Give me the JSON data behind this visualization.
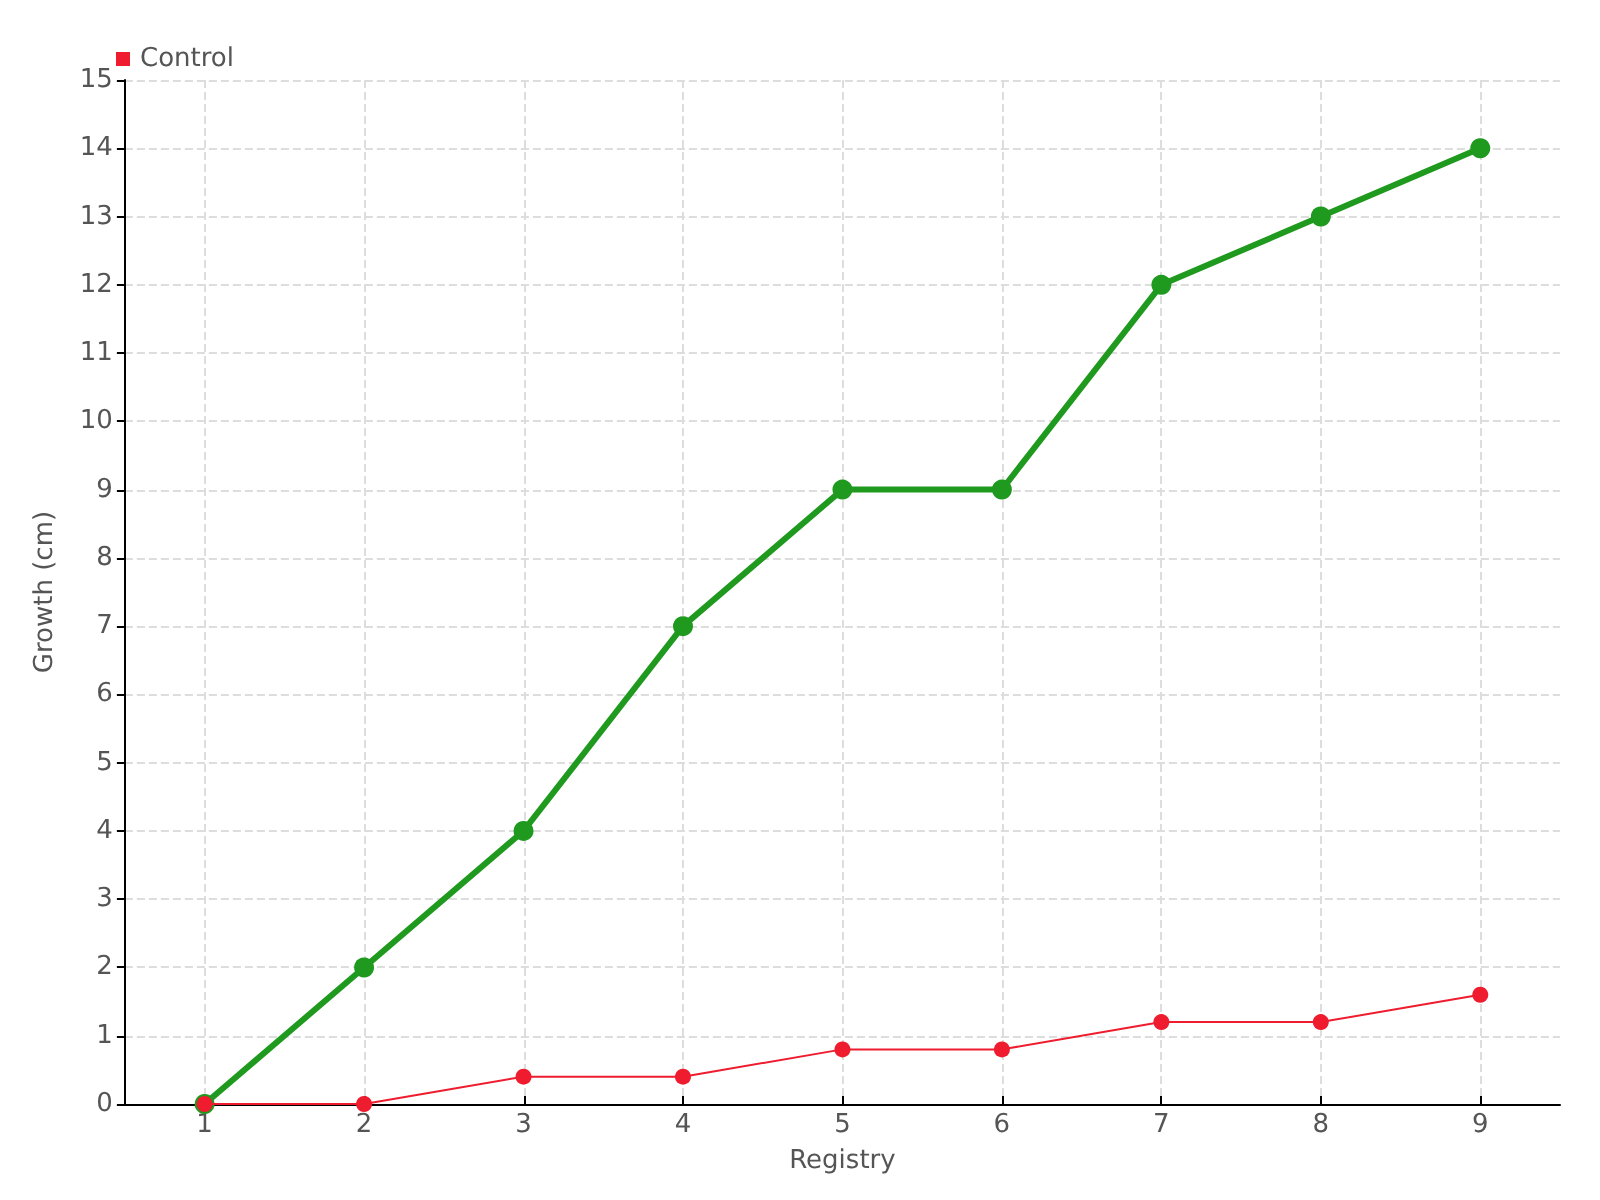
{
  "chart_data": {
    "type": "line",
    "xlabel": "Registry",
    "ylabel": "Growth (cm)",
    "x": [
      1,
      2,
      3,
      4,
      5,
      6,
      7,
      8,
      9
    ],
    "xlim": [
      0.5,
      9.5
    ],
    "xticks": [
      1,
      2,
      3,
      4,
      5,
      6,
      7,
      8,
      9
    ],
    "ylim": [
      0,
      15
    ],
    "yticks": [
      0,
      1,
      2,
      3,
      4,
      5,
      6,
      7,
      8,
      9,
      10,
      11,
      12,
      13,
      14,
      15
    ],
    "series": [
      {
        "color": "#1f9a1f",
        "values": [
          0,
          2,
          4,
          7,
          9,
          9,
          12,
          13,
          14
        ]
      },
      {
        "name": "Control",
        "color": "#ee1c2e",
        "values": [
          0,
          0,
          0.4,
          0.4,
          0.8,
          0.8,
          1.2,
          1.2,
          1.6
        ]
      }
    ],
    "grid": true,
    "legend": "top left",
    "marker": "circle",
    "line_style": "solid"
  }
}
